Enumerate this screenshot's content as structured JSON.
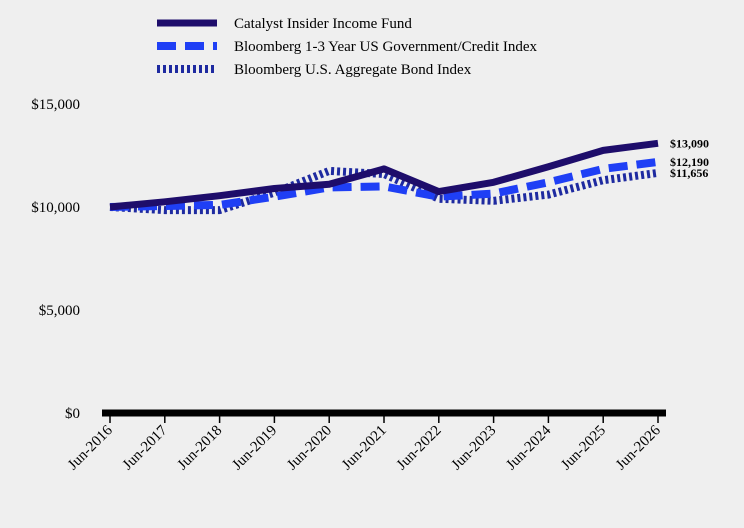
{
  "chart_data": {
    "type": "line",
    "x": [
      "Jun-2016",
      "Jun-2017",
      "Jun-2018",
      "Jun-2019",
      "Jun-2020",
      "Jun-2021",
      "Jun-2022",
      "Jun-2023",
      "Jun-2024",
      "Jun-2025",
      "Jun-2026"
    ],
    "series": [
      {
        "name": "Catalyst Insider Income Fund",
        "values": [
          10000,
          10250,
          10550,
          10900,
          11100,
          11850,
          10750,
          11200,
          11950,
          12750,
          13090
        ],
        "end_label": "$13,090",
        "color": "#1e0d6b",
        "style": "solid"
      },
      {
        "name": "Bloomberg 1-3 Year US Government/Credit Index",
        "values": [
          10000,
          10050,
          10100,
          10500,
          10950,
          11000,
          10500,
          10650,
          11200,
          11850,
          12190
        ],
        "end_label": "$12,190",
        "color": "#1f3ff5",
        "style": "dashed"
      },
      {
        "name": "Bloomberg U.S. Aggregate Bond Index",
        "values": [
          10000,
          9850,
          9850,
          10700,
          11750,
          11600,
          10400,
          10300,
          10600,
          11300,
          11656
        ],
        "end_label": "$11,656",
        "color": "#1e2aa0",
        "style": "dotted"
      }
    ],
    "yticks": [
      "$0",
      "$5,000",
      "$10,000",
      "$15,000"
    ],
    "ytick_values": [
      0,
      5000,
      10000,
      15000
    ],
    "ylim": [
      0,
      15000
    ],
    "grid": false,
    "legend_position": "top"
  }
}
